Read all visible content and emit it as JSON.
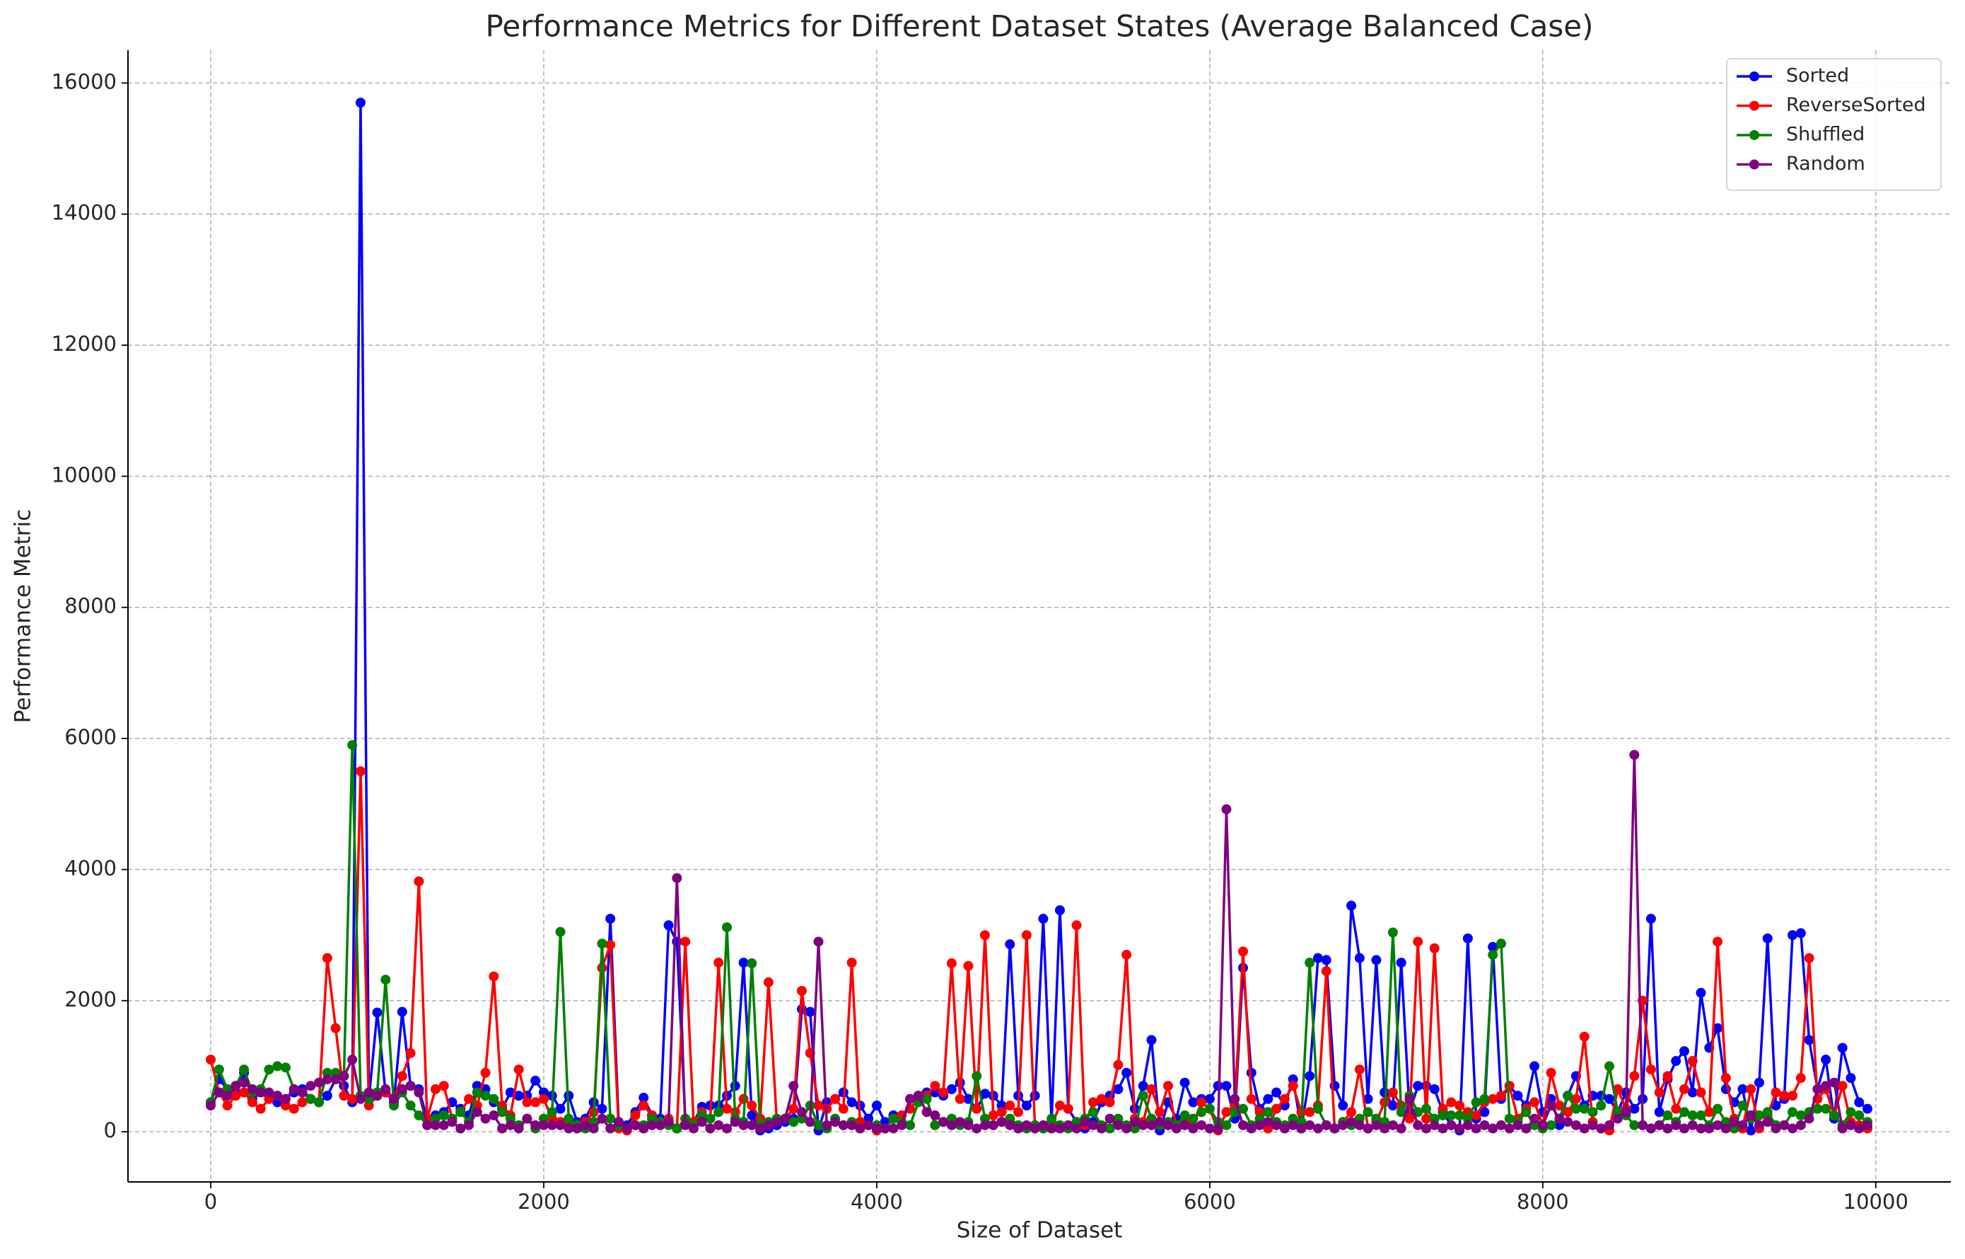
{
  "chart_data": {
    "type": "line",
    "title": "Performance Metrics for Different Dataset States (Average Balanced Case)",
    "x_label": "Size of Dataset",
    "y_label": "Performance Metric",
    "xlim": [
      -497,
      10451
    ],
    "ylim": [
      -765,
      16500
    ],
    "xticks": [
      0,
      2000,
      4000,
      6000,
      8000,
      10000
    ],
    "yticks": [
      0,
      2000,
      4000,
      6000,
      8000,
      10000,
      12000,
      14000,
      16000
    ],
    "grid": true,
    "legend_position": "upper right",
    "x": [
      0,
      50,
      100,
      150,
      200,
      250,
      300,
      350,
      400,
      450,
      500,
      550,
      600,
      650,
      700,
      750,
      800,
      850,
      900,
      950,
      1000,
      1050,
      1100,
      1150,
      1200,
      1250,
      1300,
      1350,
      1400,
      1450,
      1500,
      1550,
      1600,
      1650,
      1700,
      1750,
      1800,
      1850,
      1900,
      1950,
      2000,
      2050,
      2100,
      2150,
      2200,
      2250,
      2300,
      2350,
      2400,
      2450,
      2500,
      2550,
      2600,
      2650,
      2700,
      2750,
      2800,
      2850,
      2900,
      2950,
      3000,
      3050,
      3100,
      3150,
      3200,
      3250,
      3300,
      3350,
      3400,
      3450,
      3500,
      3550,
      3600,
      3650,
      3700,
      3750,
      3800,
      3850,
      3900,
      3950,
      4000,
      4050,
      4100,
      4150,
      4200,
      4250,
      4300,
      4350,
      4400,
      4450,
      4500,
      4550,
      4600,
      4650,
      4700,
      4750,
      4800,
      4850,
      4900,
      4950,
      5000,
      5050,
      5100,
      5150,
      5200,
      5250,
      5300,
      5350,
      5400,
      5450,
      5500,
      5550,
      5600,
      5650,
      5700,
      5750,
      5800,
      5850,
      5900,
      5950,
      6000,
      6050,
      6100,
      6150,
      6200,
      6250,
      6300,
      6350,
      6400,
      6450,
      6500,
      6550,
      6600,
      6650,
      6700,
      6750,
      6800,
      6850,
      6900,
      6950,
      7000,
      7050,
      7100,
      7150,
      7200,
      7250,
      7300,
      7350,
      7400,
      7450,
      7500,
      7550,
      7600,
      7650,
      7700,
      7750,
      7800,
      7850,
      7900,
      7950,
      8000,
      8050,
      8100,
      8150,
      8200,
      8250,
      8300,
      8350,
      8400,
      8450,
      8500,
      8550,
      8600,
      8650,
      8700,
      8750,
      8800,
      8850,
      8900,
      8950,
      9000,
      9050,
      9100,
      9150,
      9200,
      9250,
      9300,
      9350,
      9400,
      9450,
      9500,
      9550,
      9600,
      9650,
      9700,
      9750,
      9800,
      9850,
      9900,
      9950
    ],
    "series": [
      {
        "name": "Sorted",
        "color": "#0000ff",
        "values": [
          450,
          800,
          650,
          600,
          900,
          500,
          600,
          550,
          450,
          500,
          600,
          650,
          500,
          450,
          550,
          800,
          700,
          450,
          15700,
          500,
          1820,
          600,
          450,
          1830,
          700,
          650,
          200,
          250,
          300,
          450,
          350,
          250,
          700,
          650,
          450,
          350,
          600,
          550,
          550,
          780,
          600,
          550,
          350,
          550,
          150,
          200,
          450,
          350,
          3250,
          150,
          100,
          300,
          520,
          250,
          200,
          3150,
          2900,
          200,
          150,
          380,
          400,
          400,
          550,
          700,
          2580,
          250,
          20,
          50,
          100,
          150,
          200,
          1870,
          1830,
          20,
          450,
          500,
          600,
          450,
          400,
          200,
          400,
          150,
          250,
          150,
          500,
          550,
          600,
          600,
          550,
          650,
          750,
          500,
          350,
          580,
          550,
          400,
          2860,
          550,
          400,
          550,
          3250,
          150,
          3380,
          350,
          150,
          50,
          150,
          450,
          550,
          650,
          900,
          350,
          700,
          1400,
          20,
          450,
          200,
          750,
          450,
          500,
          500,
          700,
          700,
          200,
          2500,
          900,
          350,
          500,
          600,
          400,
          800,
          50,
          850,
          2650,
          2620,
          700,
          400,
          3450,
          2650,
          500,
          2620,
          600,
          400,
          2580,
          300,
          700,
          700,
          650,
          300,
          100,
          20,
          2950,
          200,
          300,
          2820,
          500,
          700,
          550,
          400,
          1000,
          300,
          500,
          100,
          550,
          850,
          400,
          550,
          550,
          500,
          300,
          600,
          350,
          500,
          3250,
          300,
          800,
          1080,
          1230,
          600,
          2120,
          1280,
          1580,
          650,
          450,
          650,
          20,
          750,
          2950,
          400,
          500,
          3000,
          3030,
          1400,
          650,
          1100,
          200,
          1280,
          820,
          450,
          350
        ]
      },
      {
        "name": "ReverseSorted",
        "color": "#ff0000",
        "values": [
          1100,
          600,
          400,
          550,
          600,
          450,
          350,
          500,
          550,
          400,
          350,
          450,
          500,
          450,
          2650,
          1580,
          550,
          500,
          5500,
          400,
          550,
          600,
          500,
          850,
          1200,
          3820,
          200,
          650,
          700,
          200,
          300,
          500,
          400,
          900,
          2370,
          400,
          250,
          950,
          450,
          450,
          500,
          200,
          150,
          100,
          50,
          150,
          300,
          2500,
          2850,
          50,
          20,
          250,
          400,
          250,
          100,
          200,
          50,
          2900,
          150,
          300,
          200,
          2580,
          350,
          300,
          500,
          400,
          200,
          2280,
          150,
          200,
          350,
          2150,
          1200,
          400,
          350,
          500,
          350,
          2580,
          150,
          100,
          20,
          50,
          200,
          250,
          350,
          500,
          550,
          700,
          600,
          2570,
          500,
          2530,
          350,
          3000,
          250,
          300,
          400,
          300,
          3000,
          100,
          50,
          100,
          400,
          350,
          3150,
          100,
          450,
          500,
          450,
          1020,
          2700,
          200,
          150,
          650,
          300,
          700,
          50,
          150,
          100,
          450,
          350,
          20,
          300,
          400,
          2750,
          500,
          300,
          50,
          350,
          500,
          700,
          300,
          300,
          400,
          2450,
          50,
          150,
          300,
          950,
          50,
          150,
          450,
          600,
          400,
          200,
          2900,
          200,
          2800,
          350,
          450,
          400,
          300,
          250,
          450,
          500,
          550,
          700,
          200,
          350,
          450,
          100,
          900,
          400,
          300,
          500,
          1450,
          150,
          50,
          20,
          650,
          350,
          850,
          2000,
          950,
          600,
          850,
          350,
          650,
          1080,
          600,
          300,
          2900,
          820,
          200,
          50,
          650,
          50,
          250,
          600,
          550,
          550,
          820,
          2650,
          500,
          650,
          250,
          700,
          150,
          100,
          50
        ]
      },
      {
        "name": "Shuffled",
        "color": "#008000",
        "values": [
          450,
          950,
          650,
          700,
          950,
          600,
          650,
          950,
          1000,
          980,
          650,
          600,
          500,
          450,
          900,
          900,
          850,
          5900,
          550,
          500,
          600,
          2320,
          400,
          600,
          400,
          250,
          100,
          200,
          250,
          200,
          300,
          150,
          600,
          550,
          500,
          300,
          200,
          100,
          200,
          50,
          200,
          300,
          3050,
          200,
          100,
          50,
          150,
          2870,
          200,
          100,
          50,
          100,
          100,
          200,
          150,
          100,
          50,
          200,
          100,
          250,
          200,
          300,
          3120,
          200,
          150,
          2570,
          100,
          150,
          200,
          200,
          150,
          200,
          400,
          100,
          50,
          200,
          100,
          150,
          50,
          100,
          100,
          50,
          200,
          150,
          100,
          450,
          500,
          100,
          150,
          200,
          100,
          150,
          850,
          200,
          100,
          150,
          200,
          100,
          50,
          100,
          50,
          200,
          100,
          50,
          150,
          200,
          300,
          100,
          50,
          200,
          100,
          50,
          550,
          200,
          100,
          150,
          100,
          250,
          200,
          300,
          350,
          150,
          100,
          300,
          350,
          100,
          200,
          300,
          150,
          100,
          200,
          150,
          2580,
          350,
          100,
          50,
          150,
          100,
          200,
          300,
          200,
          150,
          3040,
          300,
          550,
          300,
          350,
          200,
          250,
          250,
          250,
          200,
          450,
          500,
          2700,
          2870,
          200,
          150,
          300,
          100,
          50,
          100,
          200,
          550,
          350,
          350,
          300,
          400,
          1000,
          300,
          250,
          100,
          100,
          50,
          100,
          250,
          150,
          300,
          250,
          250,
          100,
          350,
          150,
          50,
          400,
          200,
          250,
          300,
          100,
          100,
          300,
          250,
          300,
          350,
          350,
          250,
          100,
          300,
          250,
          150
        ]
      },
      {
        "name": "Random",
        "color": "#800080",
        "values": [
          400,
          600,
          550,
          700,
          750,
          650,
          600,
          600,
          550,
          500,
          650,
          600,
          700,
          750,
          800,
          800,
          850,
          1100,
          500,
          600,
          550,
          650,
          500,
          650,
          700,
          600,
          100,
          100,
          100,
          150,
          50,
          100,
          300,
          200,
          250,
          50,
          100,
          50,
          200,
          100,
          100,
          100,
          100,
          50,
          50,
          100,
          50,
          200,
          50,
          150,
          50,
          100,
          50,
          100,
          100,
          150,
          3870,
          100,
          50,
          150,
          50,
          100,
          50,
          150,
          100,
          100,
          50,
          100,
          150,
          200,
          700,
          300,
          150,
          2900,
          100,
          150,
          100,
          100,
          50,
          100,
          50,
          50,
          50,
          100,
          500,
          550,
          300,
          250,
          150,
          100,
          150,
          100,
          50,
          100,
          100,
          150,
          100,
          50,
          100,
          50,
          100,
          50,
          50,
          100,
          50,
          150,
          100,
          50,
          200,
          100,
          50,
          150,
          100,
          100,
          150,
          100,
          50,
          100,
          50,
          100,
          50,
          50,
          4920,
          500,
          100,
          50,
          100,
          150,
          100,
          50,
          100,
          50,
          100,
          50,
          100,
          50,
          100,
          150,
          100,
          50,
          100,
          50,
          100,
          50,
          500,
          100,
          50,
          100,
          50,
          100,
          50,
          100,
          50,
          100,
          50,
          100,
          50,
          100,
          50,
          200,
          100,
          400,
          200,
          150,
          100,
          50,
          100,
          50,
          100,
          200,
          300,
          5750,
          100,
          50,
          100,
          50,
          100,
          50,
          100,
          50,
          50,
          100,
          50,
          150,
          100,
          250,
          100,
          150,
          50,
          100,
          50,
          100,
          200,
          650,
          700,
          750,
          50,
          100,
          50,
          100
        ]
      }
    ]
  }
}
